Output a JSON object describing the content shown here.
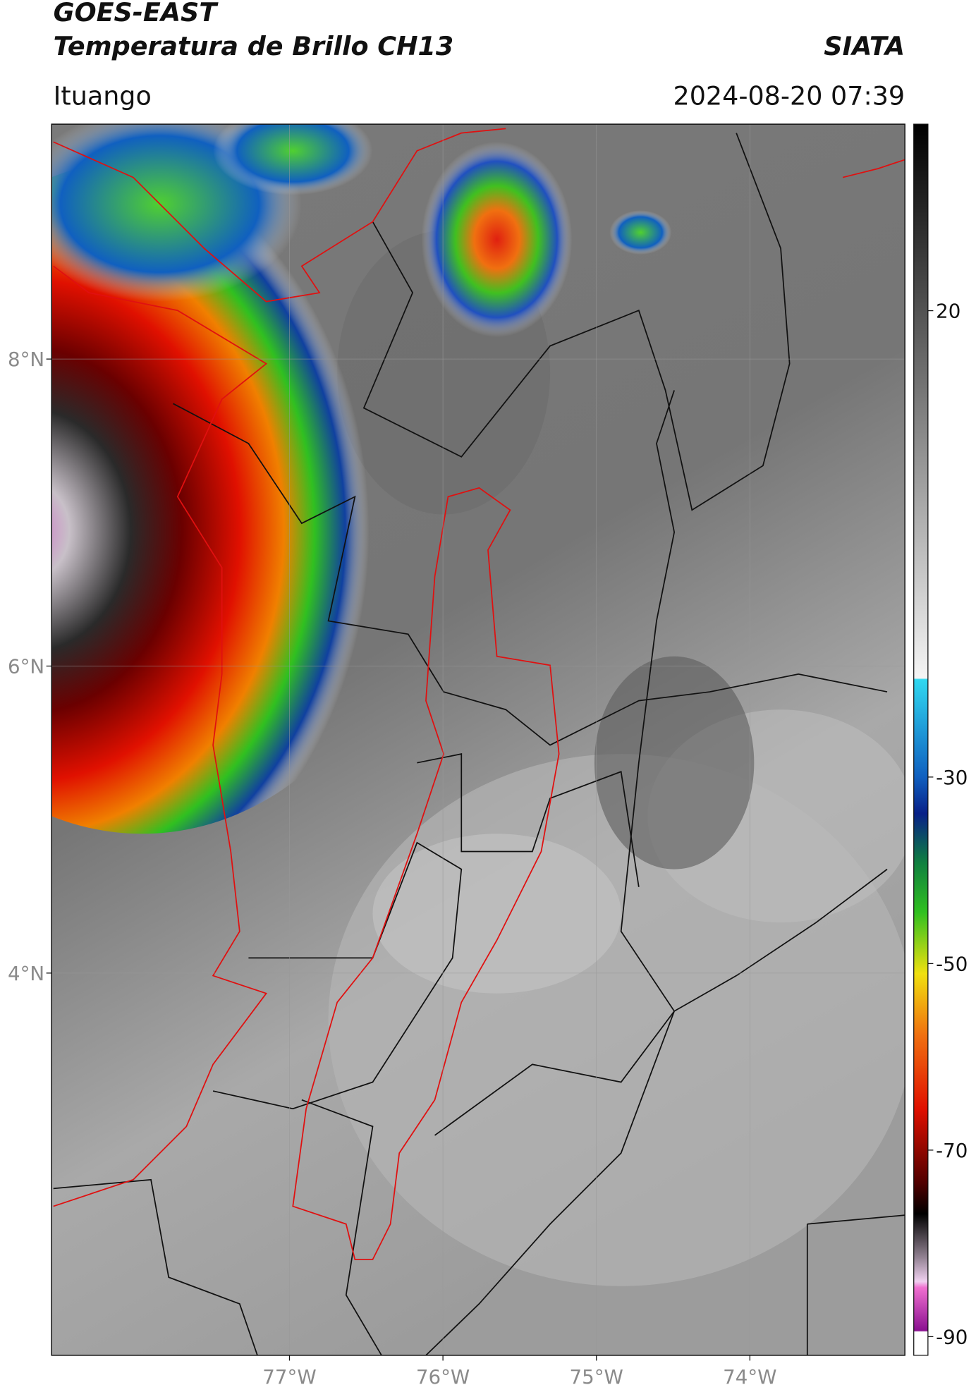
{
  "header": {
    "title_lines": [
      "GOES-EAST",
      "Temperatura de Brillo CH13"
    ],
    "agency": "SIATA",
    "region": "Ituango",
    "datetime": "2024-08-20 07:39"
  },
  "map": {
    "xlim": [
      -78.55,
      -72.99
    ],
    "ylim": [
      1.51,
      9.53
    ],
    "xticks": [
      {
        "value": -77,
        "label": "77°W"
      },
      {
        "value": -76,
        "label": "76°W"
      },
      {
        "value": -75,
        "label": "75°W"
      },
      {
        "value": -74,
        "label": "74°W"
      }
    ],
    "yticks": [
      {
        "value": 8,
        "label": "8°N"
      },
      {
        "value": 6,
        "label": "6°N"
      },
      {
        "value": 4,
        "label": "4°N"
      }
    ],
    "grid": true
  },
  "colorbar": {
    "lim": [
      -92,
      40
    ],
    "ticks": [
      20,
      -30,
      -50,
      -70,
      -90
    ]
  }
}
